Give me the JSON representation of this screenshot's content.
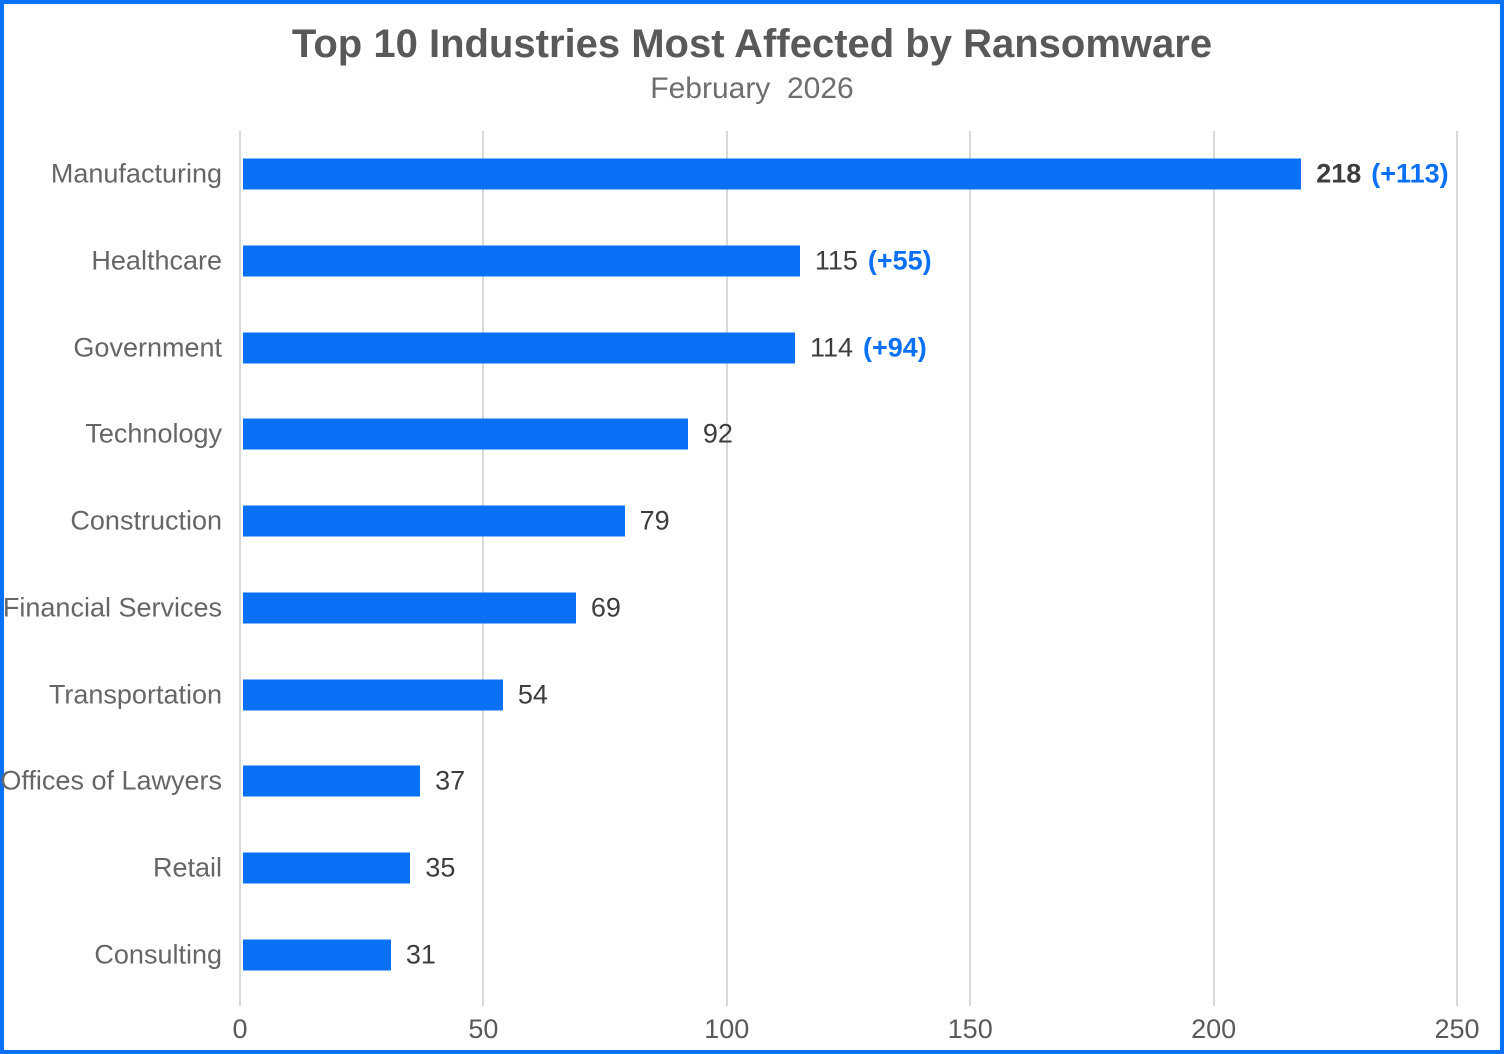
{
  "header": {
    "title": "Top 10 Industries Most Affected by Ransomware",
    "subtitle": "February  2026"
  },
  "colors": {
    "accent_blue": "#0a70f5",
    "frame_border": "#0a70f5",
    "title_gray": "#595959",
    "value_gray": "#3d3d3d",
    "gridline_gray": "#d9d9d9"
  },
  "chart_data": {
    "type": "bar",
    "orientation": "horizontal",
    "title": "Top 10 Industries Most Affected by Ransomware",
    "subtitle": "February 2026",
    "categories": [
      "Manufacturing",
      "Healthcare",
      "Government",
      "Technology",
      "Construction",
      "Financial Services",
      "Transportation",
      "Offices of Lawyers",
      "Retail",
      "Consulting"
    ],
    "values": [
      218,
      115,
      114,
      92,
      79,
      69,
      54,
      37,
      35,
      31
    ],
    "deltas": [
      "(+113)",
      "(+55)",
      "(+94)",
      "",
      "",
      "",
      "",
      "",
      "",
      ""
    ],
    "bold_value_rows": [
      0
    ],
    "xlim": [
      0,
      250
    ],
    "xticks": [
      0,
      50,
      100,
      150,
      200,
      250
    ],
    "grid": "vertical-only",
    "legend": "none",
    "bar_color": "#0a70f5",
    "delta_color": "#0a70f5",
    "xlabel": "",
    "ylabel": ""
  }
}
